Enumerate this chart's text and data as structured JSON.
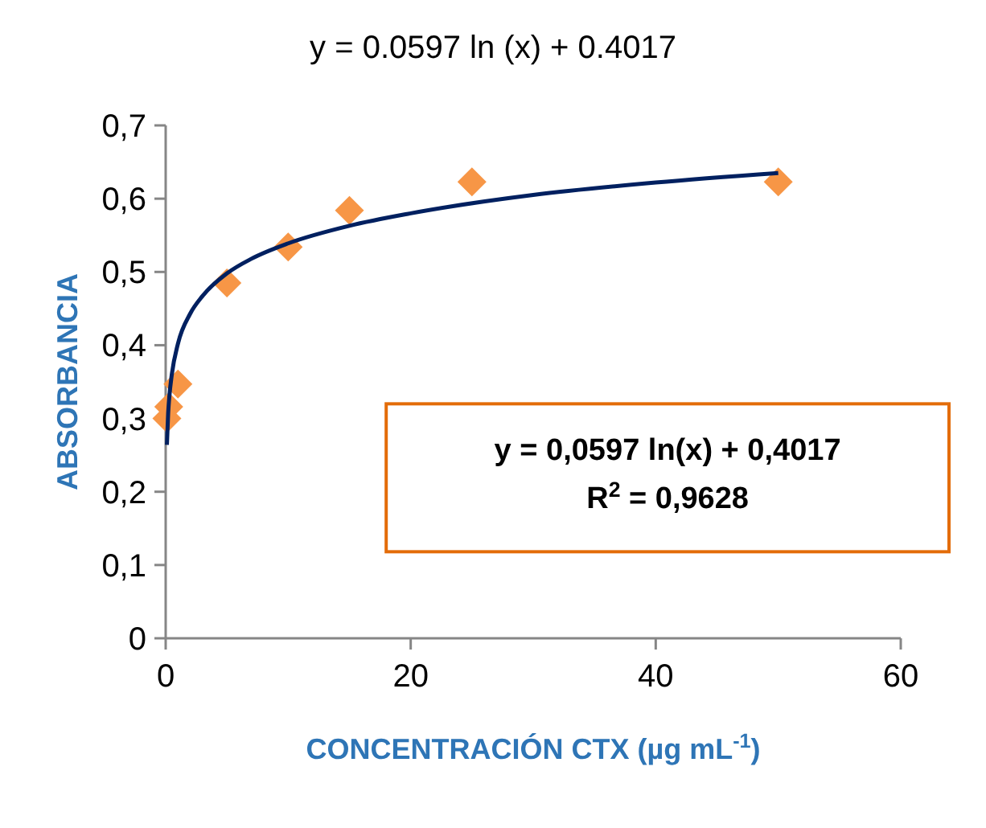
{
  "chart_data": {
    "type": "scatter",
    "title": "y = 0.0597 ln (x) + 0.4017",
    "xlabel": "CONCENTRACIÓN CTX (µg mL$^{-1}$)",
    "ylabel": "ABSORBANCIA",
    "series": [
      {
        "color": "#f79646",
        "marker": "diamond",
        "x": [
          0.1,
          0.25,
          1,
          5,
          10,
          15,
          25,
          50
        ],
        "values": [
          0.3,
          0.316,
          0.347,
          0.485,
          0.534,
          0.584,
          0.623,
          0.623
        ]
      },
      {
        "type": "line",
        "color": "#002060",
        "marker": "none",
        "line_style": "solid",
        "x": [
          0.1,
          0.2,
          0.3,
          0.5,
          1,
          2,
          3,
          5,
          7,
          10,
          15,
          20,
          30,
          40,
          50
        ],
        "values": [
          0.264,
          0.306,
          0.33,
          0.36,
          0.402,
          0.443,
          0.467,
          0.498,
          0.518,
          0.539,
          0.563,
          0.58,
          0.605,
          0.622,
          0.635
        ]
      }
    ],
    "xlim": [
      0,
      60
    ],
    "xticks": [
      0,
      20,
      40,
      60
    ],
    "ylim": [
      0,
      0.7
    ],
    "yticks": [
      0,
      {
        "value": 0.1,
        "label": "0,1"
      },
      {
        "value": 0.2,
        "label": "0,2"
      },
      {
        "value": 0.3,
        "label": "0,3"
      },
      {
        "value": 0.4,
        "label": "0,4"
      },
      {
        "value": 0.5,
        "label": "0,5"
      },
      {
        "value": 0.6,
        "label": "0,6"
      },
      {
        "value": 0.7,
        "label": "0,7"
      }
    ],
    "grid": false,
    "annotations": [
      "y = 0,0597 ln(x) + 0,4017",
      "R$^{2}$ = 0,9628"
    ]
  }
}
